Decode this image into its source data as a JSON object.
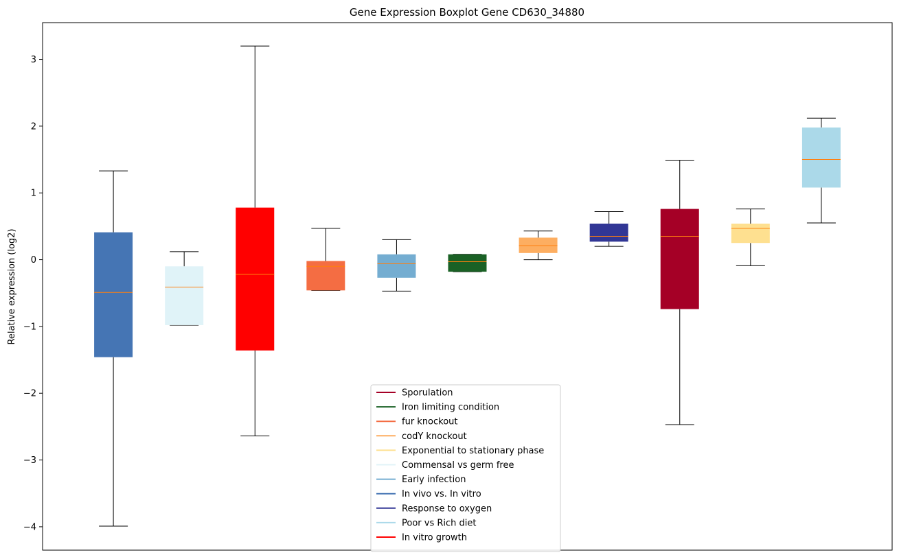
{
  "chart_data": {
    "type": "boxplot",
    "title": "Gene Expression Boxplot Gene CD630_34880",
    "xlabel": "",
    "ylabel": "Relative expression (log2)",
    "ylim": [
      -4.35,
      3.55
    ],
    "yticks": [
      -4,
      -3,
      -2,
      -1,
      0,
      1,
      2,
      3
    ],
    "ytick_labels": [
      "−4",
      "−3",
      "−2",
      "−1",
      "0",
      "1",
      "2",
      "3"
    ],
    "grid": false,
    "legend_position": "bottom-center",
    "median_color": "#ff7f0e",
    "boxes": [
      {
        "series": "In vivo vs. In vitro",
        "color": "#4575b4",
        "whisker_low": -3.99,
        "q1": -1.46,
        "median": -0.49,
        "q3": 0.41,
        "whisker_high": 1.33
      },
      {
        "series": "Commensal vs germ free",
        "color": "#e0f3f8",
        "whisker_low": -0.98,
        "q1": -0.98,
        "median": -0.41,
        "q3": -0.1,
        "whisker_high": 0.12
      },
      {
        "series": "In vitro growth",
        "color": "#ff0000",
        "whisker_low": -2.64,
        "q1": -1.36,
        "median": -0.22,
        "q3": 0.78,
        "whisker_high": 3.2
      },
      {
        "series": "fur knockout",
        "color": "#f46d43",
        "whisker_low": -0.46,
        "q1": -0.46,
        "median": -0.1,
        "q3": -0.02,
        "whisker_high": 0.47
      },
      {
        "series": "Early infection",
        "color": "#74add1",
        "whisker_low": -0.47,
        "q1": -0.27,
        "median": -0.06,
        "q3": 0.08,
        "whisker_high": 0.3
      },
      {
        "series": "Iron limiting condition",
        "color": "#1a6125",
        "whisker_low": -0.18,
        "q1": -0.18,
        "median": -0.03,
        "q3": 0.08,
        "whisker_high": 0.08
      },
      {
        "series": "codY knockout",
        "color": "#fdae61",
        "whisker_low": 0.0,
        "q1": 0.1,
        "median": 0.21,
        "q3": 0.33,
        "whisker_high": 0.43
      },
      {
        "series": "Response to oxygen",
        "color": "#313695",
        "whisker_low": 0.2,
        "q1": 0.27,
        "median": 0.35,
        "q3": 0.54,
        "whisker_high": 0.72
      },
      {
        "series": "Sporulation",
        "color": "#a50026",
        "whisker_low": -2.47,
        "q1": -0.74,
        "median": 0.35,
        "q3": 0.76,
        "whisker_high": 1.49
      },
      {
        "series": "Exponential to stationary phase",
        "color": "#fee090",
        "whisker_low": -0.09,
        "q1": 0.25,
        "median": 0.47,
        "q3": 0.54,
        "whisker_high": 0.76
      },
      {
        "series": "Poor vs Rich diet",
        "color": "#abd9e9",
        "whisker_low": 0.55,
        "q1": 1.08,
        "median": 1.5,
        "q3": 1.98,
        "whisker_high": 2.12
      }
    ],
    "legend": [
      {
        "label": "Sporulation",
        "color": "#a50026"
      },
      {
        "label": "Iron limiting condition",
        "color": "#1a6125"
      },
      {
        "label": "fur knockout",
        "color": "#f46d43"
      },
      {
        "label": "codY knockout",
        "color": "#fdae61"
      },
      {
        "label": "Exponential to stationary phase",
        "color": "#fee090"
      },
      {
        "label": "Commensal vs germ free",
        "color": "#e0f3f8"
      },
      {
        "label": "Early infection",
        "color": "#74add1"
      },
      {
        "label": "In vivo vs. In vitro",
        "color": "#4575b4"
      },
      {
        "label": "Response to oxygen",
        "color": "#313695"
      },
      {
        "label": "Poor vs Rich diet",
        "color": "#abd9e9"
      },
      {
        "label": "In vitro growth",
        "color": "#ff0000"
      }
    ]
  }
}
